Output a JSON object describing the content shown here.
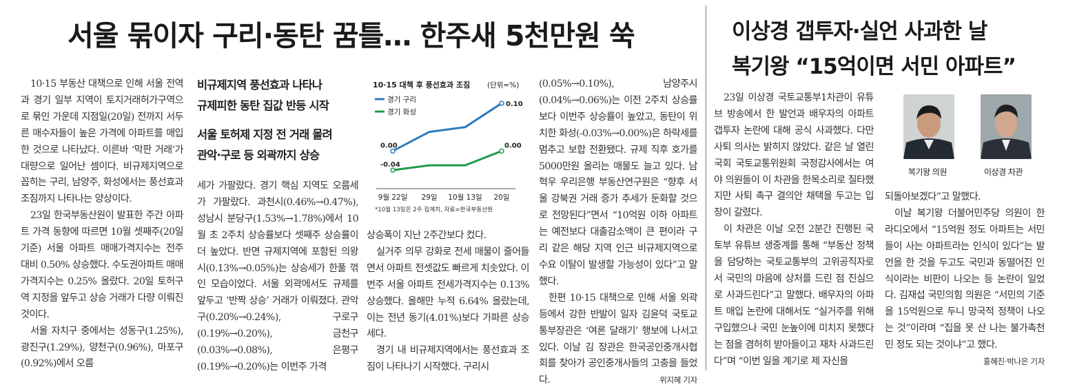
{
  "article1": {
    "headline": "서울 묶이자 구리·동탄 꿈틀… 한주새 5천만원 쑥",
    "subheads": [
      "비규제지역 풍선효과 나타나",
      "규제피한 동탄 집값 반등 시작",
      "서울 토허제 지정 전 거래 몰려",
      "관악·구로 등 외곽까지 상승"
    ],
    "col1": [
      "10·15 부동산 대책으로 인해 서울 전역과 경기 일부 지역이 토지거래허가구역으로 묶인 가운데 지점일(20일) 전까지 서두른 매수자들이 높은 가격에 아파트를 매입한 것으로 나타났다. 이른바 ‘막판 거래’가 대량으로 일어난 셈이다. 비규제지역으로 꼽히는 구리, 남양주, 화성에서는 풍선효과 조짐까지 나타나는 양상이다.",
      "23일 한국부동산원이 발표한 주간 아파트 가격 동향에 따르면 10월 셋째주(20일 기준) 서울 아파트 매매가격지수는 전주 대비 0.50% 상승했다. 수도권아파트 매매가격지수는 0.25% 올랐다. 20일 토허구역 지정을 앞두고 상승 거래가 다량 이뤄진 것이다.",
      "서울 자치구 중에서는 성동구(1.25%), 광진구(1.29%), 양천구(0.96%), 마포구(0.92%)에서 오름"
    ],
    "col2": [
      "세가 가팔랐다. 경기 핵심 지역도 오름세가 가팔랐다. 과천시(0.46%→0.47%), 성남시 분당구(1.53%→1.78%)에서 10월 초 2주치 상승률보다 셋째주 상승률이 더 높았다. 반면 규제지역에 포함된 의왕시(0.13%→0.05%)는 상승세가 한풀 꺾인 모습이었다. 서울 외곽에서도 규제를 앞두고 ‘반짝 상승’ 거래가 이뤄졌다. 관악구(0.20%→0.24%), 구로구(0.19%→0.20%), 금천구(0.03%→0.08%), 은평구(0.19%→0.20%)는 이번주 가격"
    ],
    "col3": [
      "상승폭이 지난 2주간보다 컸다.",
      "실거주 의무 강화로 전세 매물이 줄어들면서 아파트 전셋값도 빠르게 치솟았다. 이번주 서울 아파트 전세가격지수는 0.13% 상승했다. 올해만 누적 6.64% 올랐는데, 이는 전년 동기(4.01%)보다 가파른 상승세다.",
      "경기 내 비규제지역에서는 풍선효과 조짐이 나타나기 시작했다. 구리시"
    ],
    "col4": [
      "(0.05%→0.10%), 남양주시(0.04%→0.06%)는 이전 2주치 상승률보다 이번주 상승률이 높았고, 동탄이 위치한 화성(-0.03%→0.00%)은 하락세를 멈추고 보합 전환됐다. 규제 직후 호가를 5000만원 올리는 매물도 늘고 있다. 남혁우 우리은행 부동산연구원은 “향후 서울 강북권 거래 증가 추세가 둔화할 것으로 전망된다”면서 “10억원 이하 아파트는 예전보다 대출감소액이 큰 편이라 구리 같은 해당 지역 인근 비규제지역으로 수요 이탈이 발생할 가능성이 있다”고 말했다.",
      "한편 10·15 대책으로 인해 서울 외곽 등에서 강한 반발이 일자 김윤덕 국토교통부장관은 ‘여론 달래기’ 행보에 나서고 있다. 이날 김 장관은 한국공인중개사협회를 찾아가 공인중개사들의 고충을 들었다."
    ],
    "byline": "위지혜 기자"
  },
  "chart_data": {
    "type": "line",
    "title": "10·15 대책 후 풍선효과 조짐",
    "unit": "(단위=%)",
    "categories": [
      "9월 22일",
      "29일",
      "10월 13일",
      "20일"
    ],
    "series": [
      {
        "name": "경기 구리",
        "color": "#2b7bbf",
        "values": [
          0.0,
          0.04,
          0.05,
          0.1
        ]
      },
      {
        "name": "경기 화성",
        "color": "#1f9a4b",
        "values": [
          -0.04,
          -0.03,
          -0.03,
          0.0
        ]
      }
    ],
    "data_labels": [
      "0.00",
      "-0.04",
      "0.10",
      "0.00"
    ],
    "ylim": [
      -0.06,
      0.11
    ],
    "grid": false,
    "legend": "top-left",
    "footnote": "*10월 13일은 2주 집계치, 자료=한국부동산원"
  },
  "article2": {
    "headline_line1": "이상경 갭투자·실언 사과한 날",
    "headline_line2": "복기왕 “15억이면 서민 아파트”",
    "col1": [
      "23일 이상경 국토교통부1차관이 유튜브 방송에서 한 발언과 배우자의 아파트 갭투자 논란에 대해 공식 사과했다. 다만 사퇴 의사는 밝히지 않았다. 같은 날 열린 국회 국토교통위원회 국정감사에서는 여야 의원들이 이 차관을 한목소리로 질타했지만 사퇴 촉구 결의안 채택을 두고는 입장이 갈렸다.",
      "이 차관은 이날 오전 2분간 진행된 국토부 유튜브 생중계를 통해 “부동산 정책을 담당하는 국토교통부의 고위공직자로서 국민의 마음에 상처를 드린 점 진심으로 사과드린다”고 말했다. 배우자의 아파트 매입 논란에 대해서도 “실거주를 위해 구입했으나 국민 눈높이에 미치지 못했다는 점을 겸허히 받아들이고 재차 사과드린다”며 “이번 일을 계기로 제 자신을"
    ],
    "col2": [
      "되돌아보겠다”고 말했다.",
      "이날 복기왕 더불어민주당 의원이 한 라디오에서 “15억원 정도 아파트는 서민들이 사는 아파트라는 인식이 있다”는 발언을 한 것을 두고도 국민과 동떨어진 인식이라는 비판이 나오는 등 논란이 일었다. 김재섭 국민의힘 의원은 “서민의 기준을 15억원으로 두니 망국적 정책이 나오는 것”이라며 “집을 못 산 나는 불가촉천민 정도 되는 것이냐”고 했다."
    ],
    "byline": "홍혜진·박나은 기자",
    "photo_captions": [
      "복기왕 의원",
      "이상경 차관"
    ]
  }
}
